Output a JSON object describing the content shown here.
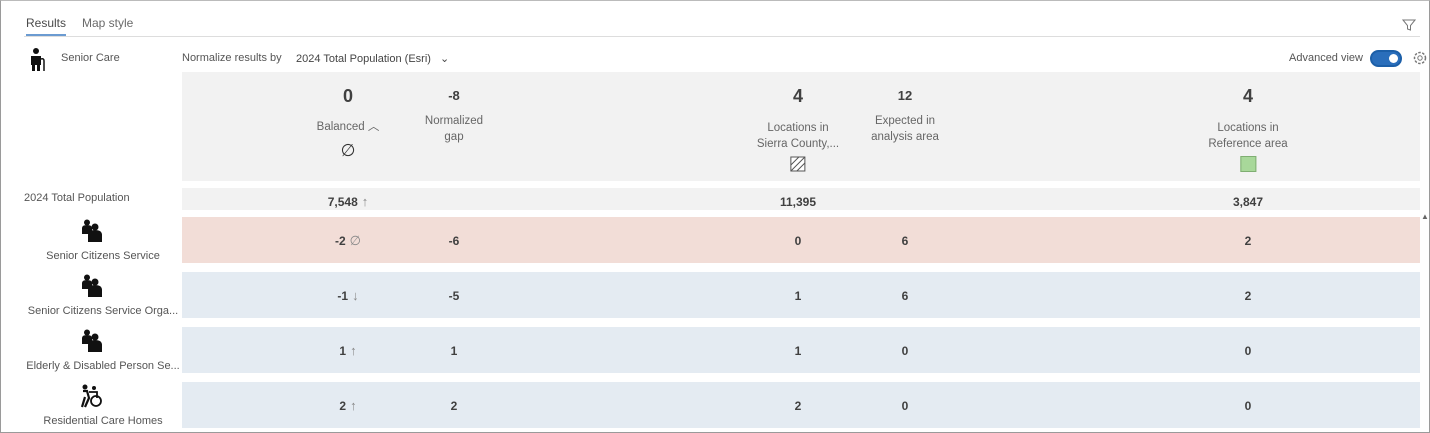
{
  "tabs": [
    {
      "label": "Results"
    },
    {
      "label": "Map style"
    }
  ],
  "category": {
    "label": "Senior Care"
  },
  "normalize": {
    "label": "Normalize results by",
    "value": "2024 Total Population (Esri)"
  },
  "advanced_view": {
    "label": "Advanced view",
    "on": true
  },
  "summary": {
    "balanced": {
      "value": "0",
      "label": "Balanced"
    },
    "normalized_gap": {
      "value": "-8",
      "label1": "Normalized",
      "label2": "gap"
    },
    "locations_in": {
      "value": "4",
      "label1": "Locations in",
      "label2": "Sierra County,..."
    },
    "expected": {
      "value": "12",
      "label1": "Expected in",
      "label2": "analysis area"
    },
    "reference": {
      "value": "4",
      "label1": "Locations in",
      "label2": "Reference area"
    }
  },
  "population": {
    "label": "2024 Total Population",
    "col1": "7,548",
    "col3": "11,395",
    "col5": "3,847"
  },
  "colors": {
    "red_row": "#f2ddd7",
    "blue_row": "#e4ebf2",
    "reference_swatch": "#a8d89a",
    "accent": "#2a6ebb"
  },
  "rows": [
    {
      "label": "Senior Citizens Service",
      "icon": "people-icon",
      "score": "-2",
      "indicator": "∅",
      "gap": "-6",
      "locations": "0",
      "expected": "6",
      "reference": "2",
      "status": "red"
    },
    {
      "label": "Senior Citizens Service Orga...",
      "icon": "people-icon",
      "score": "-1",
      "indicator": "↓",
      "gap": "-5",
      "locations": "1",
      "expected": "6",
      "reference": "2",
      "status": "blue"
    },
    {
      "label": "Elderly & Disabled Person Se...",
      "icon": "people-icon",
      "score": "1",
      "indicator": "↑",
      "gap": "1",
      "locations": "1",
      "expected": "0",
      "reference": "0",
      "status": "blue"
    },
    {
      "label": "Residential Care Homes",
      "icon": "wheelchair-icon",
      "score": "2",
      "indicator": "↑",
      "gap": "2",
      "locations": "2",
      "expected": "0",
      "reference": "0",
      "status": "blue"
    }
  ]
}
